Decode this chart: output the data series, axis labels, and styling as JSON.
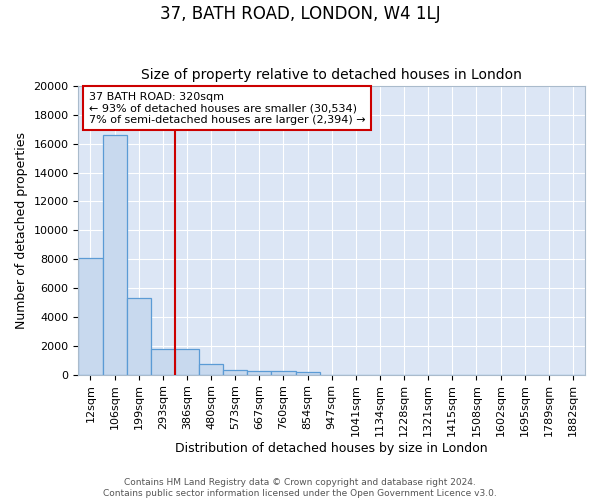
{
  "title": "37, BATH ROAD, LONDON, W4 1LJ",
  "subtitle": "Size of property relative to detached houses in London",
  "xlabel": "Distribution of detached houses by size in London",
  "ylabel": "Number of detached properties",
  "bar_values": [
    8100,
    16600,
    5300,
    1800,
    1800,
    700,
    350,
    250,
    220,
    180,
    0,
    0,
    0,
    0,
    0,
    0,
    0,
    0,
    0,
    0,
    0
  ],
  "bar_labels": [
    "12sqm",
    "106sqm",
    "199sqm",
    "293sqm",
    "386sqm",
    "480sqm",
    "573sqm",
    "667sqm",
    "760sqm",
    "854sqm",
    "947sqm",
    "1041sqm",
    "1134sqm",
    "1228sqm",
    "1321sqm",
    "1415sqm",
    "1508sqm",
    "1602sqm",
    "1695sqm",
    "1789sqm",
    "1882sqm"
  ],
  "ylim": [
    0,
    20000
  ],
  "yticks": [
    0,
    2000,
    4000,
    6000,
    8000,
    10000,
    12000,
    14000,
    16000,
    18000,
    20000
  ],
  "vline_x": 3.5,
  "bar_color": "#c8d9ee",
  "bar_edge_color": "#5b9bd5",
  "vline_color": "#cc0000",
  "annotation_text": "37 BATH ROAD: 320sqm\n← 93% of detached houses are smaller (30,534)\n7% of semi-detached houses are larger (2,394) →",
  "annotation_box_color": "#ffffff",
  "annotation_box_edge": "#cc0000",
  "plot_bg_color": "#dce6f5",
  "fig_bg_color": "#ffffff",
  "grid_color": "#ffffff",
  "footer_line1": "Contains HM Land Registry data © Crown copyright and database right 2024.",
  "footer_line2": "Contains public sector information licensed under the Open Government Licence v3.0.",
  "title_fontsize": 12,
  "subtitle_fontsize": 10,
  "axis_label_fontsize": 9,
  "tick_fontsize": 8,
  "annotation_fontsize": 8
}
